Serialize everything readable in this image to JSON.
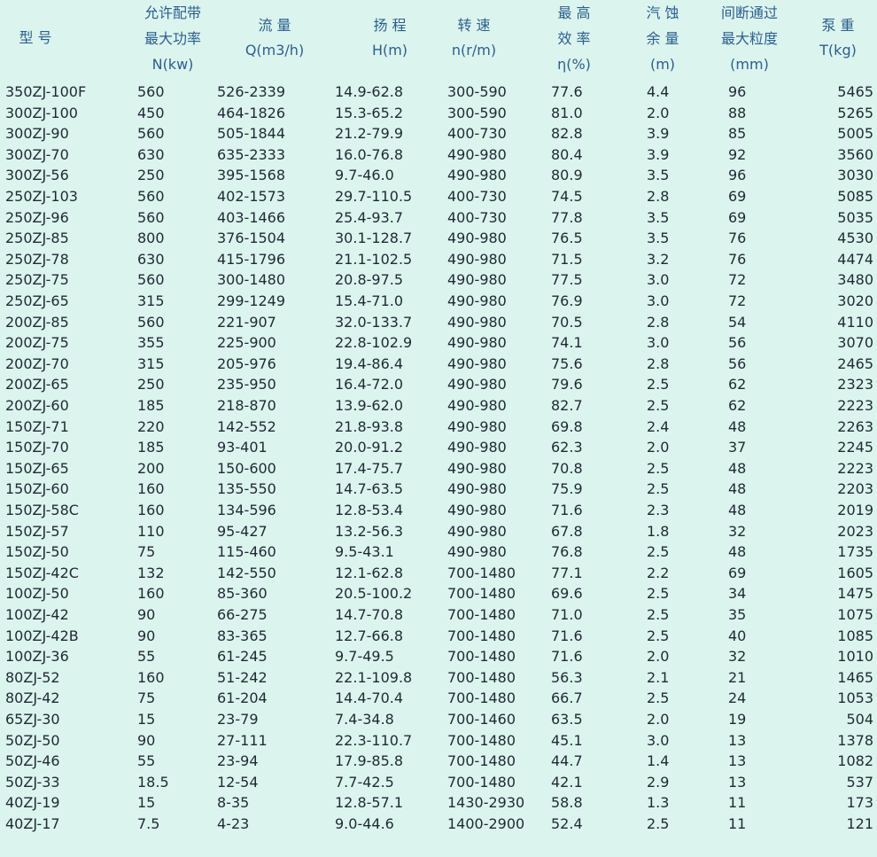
{
  "table": {
    "headers": [
      [
        "型 号"
      ],
      [
        "允许配带",
        "最大功率",
        "N(kw)"
      ],
      [
        "流 量",
        "Q(m3/h)"
      ],
      [
        "扬 程",
        "H(m)"
      ],
      [
        "转 速",
        "n(r/m)"
      ],
      [
        "最 高",
        "效 率",
        "η(%)"
      ],
      [
        "汽 蚀",
        "余 量",
        "(m)"
      ],
      [
        "间断通过",
        "最大粒度",
        "(mm)"
      ],
      [
        "泵 重",
        "T(kg)"
      ]
    ],
    "rows": [
      [
        "350ZJ-100F",
        "560",
        "526-2339",
        "14.9-62.8",
        "300-590",
        "77.6",
        "4.4",
        "96",
        "5465"
      ],
      [
        "300ZJ-100",
        "450",
        "464-1826",
        "15.3-65.2",
        "300-590",
        "81.0",
        "2.0",
        "88",
        "5265"
      ],
      [
        "300ZJ-90",
        "560",
        "505-1844",
        "21.2-79.9",
        "400-730",
        "82.8",
        "3.9",
        "85",
        "5005"
      ],
      [
        "300ZJ-70",
        "630",
        "635-2333",
        "16.0-76.8",
        "490-980",
        "80.4",
        "3.9",
        "92",
        "3560"
      ],
      [
        "300ZJ-56",
        "250",
        "395-1568",
        "9.7-46.0",
        "490-980",
        "80.9",
        "3.5",
        "96",
        "3030"
      ],
      [
        "250ZJ-103",
        "560",
        "402-1573",
        "29.7-110.5",
        "400-730",
        "74.5",
        "2.8",
        "69",
        "5085"
      ],
      [
        "250ZJ-96",
        "560",
        "403-1466",
        "25.4-93.7",
        "400-730",
        "77.8",
        "3.5",
        "69",
        "5035"
      ],
      [
        "250ZJ-85",
        "800",
        "376-1504",
        "30.1-128.7",
        "490-980",
        "76.5",
        "3.5",
        "76",
        "4530"
      ],
      [
        "250ZJ-78",
        "630",
        "415-1796",
        "21.1-102.5",
        "490-980",
        "71.5",
        "3.2",
        "76",
        "4474"
      ],
      [
        "250ZJ-75",
        "560",
        "300-1480",
        "20.8-97.5",
        "490-980",
        "77.5",
        "3.0",
        "72",
        "3480"
      ],
      [
        "250ZJ-65",
        "315",
        "299-1249",
        "15.4-71.0",
        "490-980",
        "76.9",
        "3.0",
        "72",
        "3020"
      ],
      [
        "200ZJ-85",
        "560",
        "221-907",
        "32.0-133.7",
        "490-980",
        "70.5",
        "2.8",
        "54",
        "4110"
      ],
      [
        "200ZJ-75",
        "355",
        "225-900",
        "22.8-102.9",
        "490-980",
        "74.1",
        "3.0",
        "56",
        "3070"
      ],
      [
        "200ZJ-70",
        "315",
        "205-976",
        "19.4-86.4",
        "490-980",
        "75.6",
        "2.8",
        "56",
        "2465"
      ],
      [
        "200ZJ-65",
        "250",
        "235-950",
        "16.4-72.0",
        "490-980",
        "79.6",
        "2.5",
        "62",
        "2323"
      ],
      [
        "200ZJ-60",
        "185",
        "218-870",
        "13.9-62.0",
        "490-980",
        "82.7",
        "2.5",
        "62",
        "2223"
      ],
      [
        "150ZJ-71",
        "220",
        "142-552",
        "21.8-93.8",
        "490-980",
        "69.8",
        "2.4",
        "48",
        "2263"
      ],
      [
        "150ZJ-70",
        "185",
        "93-401",
        "20.0-91.2",
        "490-980",
        "62.3",
        "2.0",
        "37",
        "2245"
      ],
      [
        "150ZJ-65",
        "200",
        "150-600",
        "17.4-75.7",
        "490-980",
        "70.8",
        "2.5",
        "48",
        "2223"
      ],
      [
        "150ZJ-60",
        "160",
        "135-550",
        "14.7-63.5",
        "490-980",
        "75.9",
        "2.5",
        "48",
        "2203"
      ],
      [
        "150ZJ-58C",
        "160",
        "134-596",
        "12.8-53.4",
        "490-980",
        "71.6",
        "2.3",
        "48",
        "2019"
      ],
      [
        "150ZJ-57",
        "110",
        "95-427",
        "13.2-56.3",
        "490-980",
        "67.8",
        "1.8",
        "32",
        "2023"
      ],
      [
        "150ZJ-50",
        "75",
        "115-460",
        "9.5-43.1",
        "490-980",
        "76.8",
        "2.5",
        "48",
        "1735"
      ],
      [
        "150ZJ-42C",
        "132",
        "142-550",
        "12.1-62.8",
        "700-1480",
        "77.1",
        "2.2",
        "69",
        "1605"
      ],
      [
        "100ZJ-50",
        "160",
        "85-360",
        "20.5-100.2",
        "700-1480",
        "69.6",
        "2.5",
        "34",
        "1475"
      ],
      [
        "100ZJ-42",
        "90",
        "66-275",
        "14.7-70.8",
        "700-1480",
        "71.0",
        "2.5",
        "35",
        "1075"
      ],
      [
        "100ZJ-42B",
        "90",
        "83-365",
        "12.7-66.8",
        "700-1480",
        "71.6",
        "2.5",
        "40",
        "1085"
      ],
      [
        "100ZJ-36",
        "55",
        "61-245",
        "9.7-49.5",
        "700-1480",
        "71.6",
        "2.0",
        "32",
        "1010"
      ],
      [
        "80ZJ-52",
        "160",
        "51-242",
        "22.1-109.8",
        "700-1480",
        "56.3",
        "2.1",
        "21",
        "1465"
      ],
      [
        "80ZJ-42",
        "75",
        "61-204",
        "14.4-70.4",
        "700-1480",
        "66.7",
        "2.5",
        "24",
        "1053"
      ],
      [
        "65ZJ-30",
        "15",
        "23-79",
        "7.4-34.8",
        "700-1460",
        "63.5",
        "2.0",
        "19",
        "504"
      ],
      [
        "50ZJ-50",
        "90",
        "27-111",
        "22.3-110.7",
        "700-1480",
        "45.1",
        "3.0",
        "13",
        "1378"
      ],
      [
        "50ZJ-46",
        "55",
        "23-94",
        "17.9-85.8",
        "700-1480",
        "44.7",
        "1.4",
        "13",
        "1082"
      ],
      [
        "50ZJ-33",
        "18.5",
        "12-54",
        "7.7-42.5",
        "700-1480",
        "42.1",
        "2.9",
        "13",
        "537"
      ],
      [
        "40ZJ-19",
        "15",
        "8-35",
        "12.8-57.1",
        "1430-2930",
        "58.8",
        "1.3",
        "11",
        "173"
      ],
      [
        "40ZJ-17",
        "7.5",
        "4-23",
        "9.0-44.6",
        "1400-2900",
        "52.4",
        "2.5",
        "11",
        "121"
      ]
    ]
  }
}
